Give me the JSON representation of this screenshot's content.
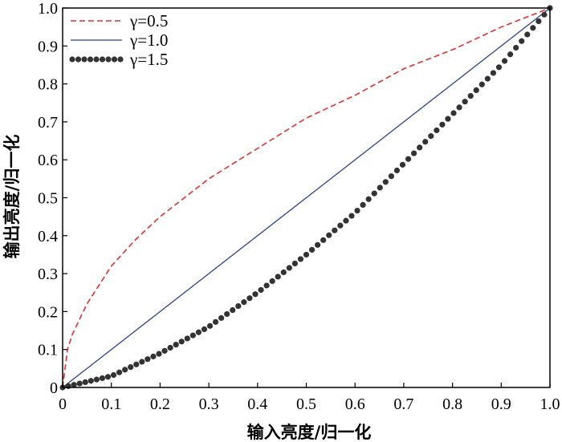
{
  "chart_data": {
    "type": "line",
    "xlabel": "输入亮度/归一化",
    "ylabel": "输出亮度/归一化",
    "xlim": [
      0,
      1.0
    ],
    "ylim": [
      0,
      1.0
    ],
    "x_ticks": [
      "0",
      "0.1",
      "0.2",
      "0.3",
      "0.4",
      "0.5",
      "0.6",
      "0.7",
      "0.8",
      "0.9",
      "1.0"
    ],
    "y_ticks": [
      "0",
      "0.1",
      "0.2",
      "0.3",
      "0.4",
      "0.5",
      "0.6",
      "0.7",
      "0.8",
      "0.9",
      "1.0"
    ],
    "grid": false,
    "legend_position": "top-left",
    "series": [
      {
        "name": "γ=0.5",
        "style": "dashed",
        "color": "#e03030",
        "x": [
          0,
          0.01,
          0.02,
          0.05,
          0.1,
          0.15,
          0.2,
          0.3,
          0.4,
          0.5,
          0.6,
          0.7,
          0.8,
          0.9,
          1.0
        ],
        "y": [
          0,
          0.1,
          0.14,
          0.22,
          0.32,
          0.39,
          0.45,
          0.55,
          0.63,
          0.71,
          0.77,
          0.84,
          0.89,
          0.95,
          1.0
        ]
      },
      {
        "name": "γ=1.0",
        "style": "solid",
        "color": "#2b3f8f",
        "x": [
          0,
          1.0
        ],
        "y": [
          0,
          1.0
        ]
      },
      {
        "name": "γ=1.5",
        "style": "dotted",
        "color": "#333333",
        "x": [
          0,
          0.1,
          0.2,
          0.3,
          0.4,
          0.5,
          0.6,
          0.7,
          0.8,
          0.9,
          1.0
        ],
        "y": [
          0,
          0.03,
          0.09,
          0.16,
          0.25,
          0.35,
          0.46,
          0.59,
          0.72,
          0.85,
          1.0
        ]
      }
    ]
  }
}
